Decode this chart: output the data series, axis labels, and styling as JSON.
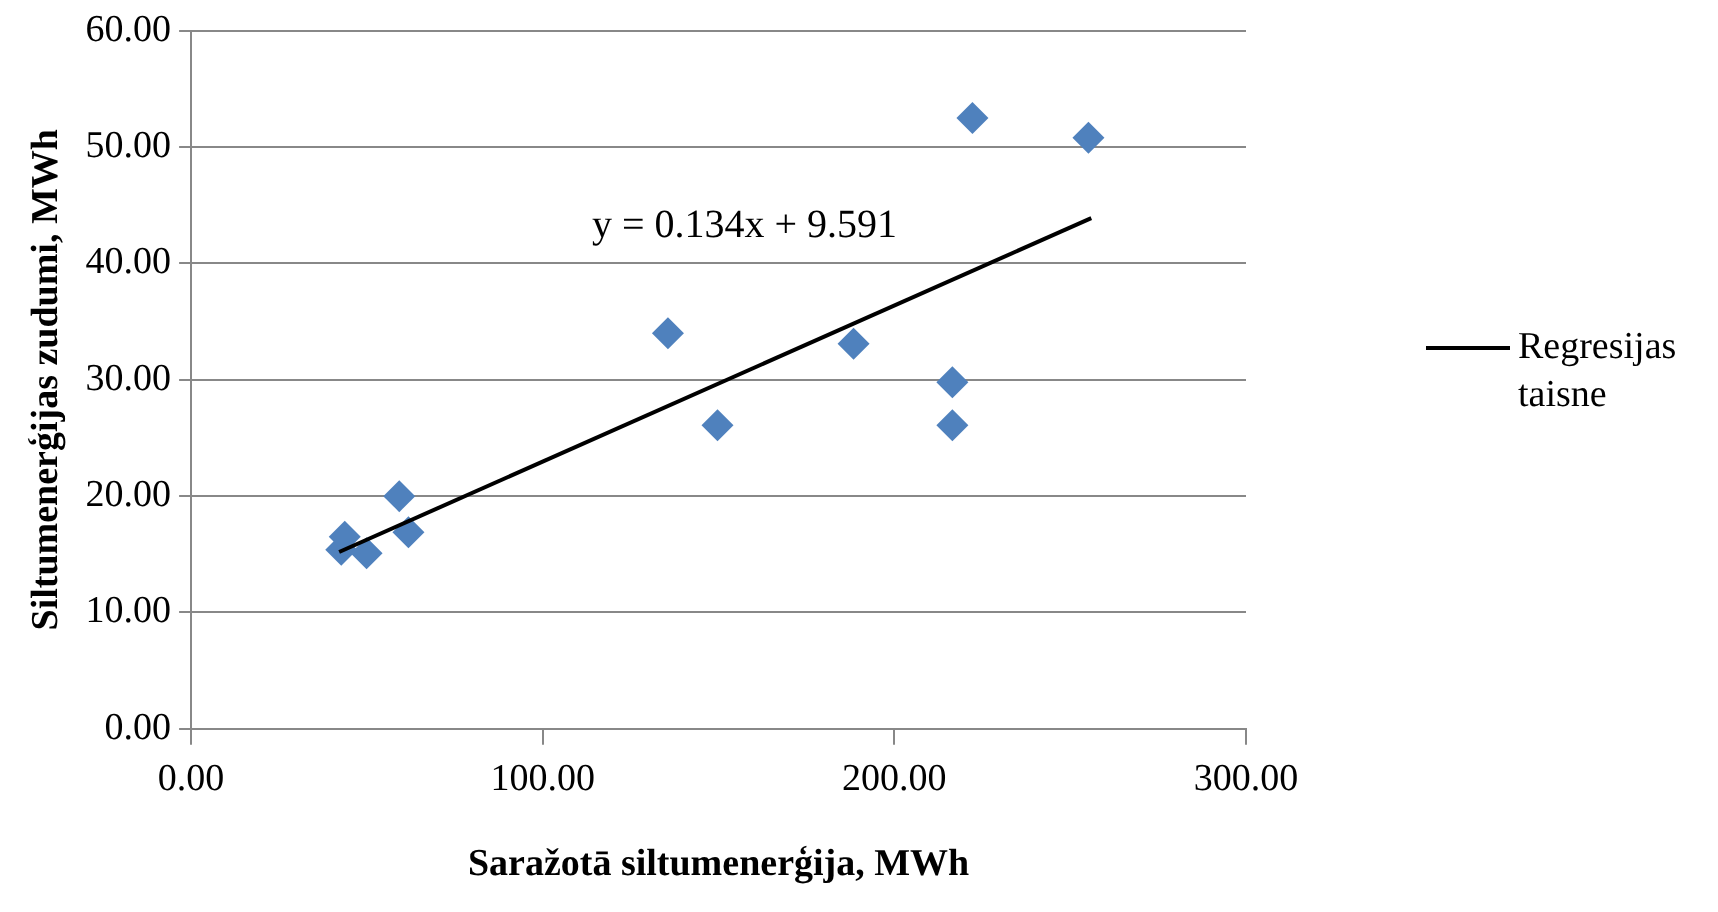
{
  "chart_data": {
    "type": "scatter",
    "xlabel": "Saražotā siltumenerģija, MWh",
    "ylabel": "Siltumenerģijas zudumi, MWh",
    "series": [
      {
        "color": "#4f81bd",
        "marker": "diamond",
        "x": [
          42.7,
          43.7,
          49.9,
          59.2,
          61.8,
          135.6,
          149.7,
          188.4,
          216.5,
          216.5,
          222.2,
          255.2
        ],
        "values": [
          15.4,
          16.5,
          15.1,
          20.0,
          16.9,
          34.0,
          26.1,
          33.1,
          29.8,
          26.1,
          52.5,
          50.8
        ]
      },
      {
        "type": "line",
        "name": "Regresijas taisne",
        "color": "#000000",
        "marker": "none",
        "line_style": "solid",
        "x": [
          42.1,
          256.0
        ],
        "values": [
          15.2,
          43.9
        ]
      }
    ],
    "annotations": [
      "y = 0.134x + 9.591"
    ],
    "xlim": [
      0,
      300
    ],
    "xticks": [
      {
        "value": 0,
        "label": "0.00"
      },
      {
        "value": 100,
        "label": "100.00"
      },
      {
        "value": 200,
        "label": "200.00"
      },
      {
        "value": 300,
        "label": "300.00"
      }
    ],
    "ylim": [
      0,
      60
    ],
    "yticks": [
      {
        "value": 0,
        "label": "0.00"
      },
      {
        "value": 10,
        "label": "10.00"
      },
      {
        "value": 20,
        "label": "20.00"
      },
      {
        "value": 30,
        "label": "30.00"
      },
      {
        "value": 40,
        "label": "40.00"
      },
      {
        "value": 50,
        "label": "50.00"
      },
      {
        "value": 60,
        "label": "60.00"
      }
    ],
    "grid": "y",
    "legend": "right"
  }
}
